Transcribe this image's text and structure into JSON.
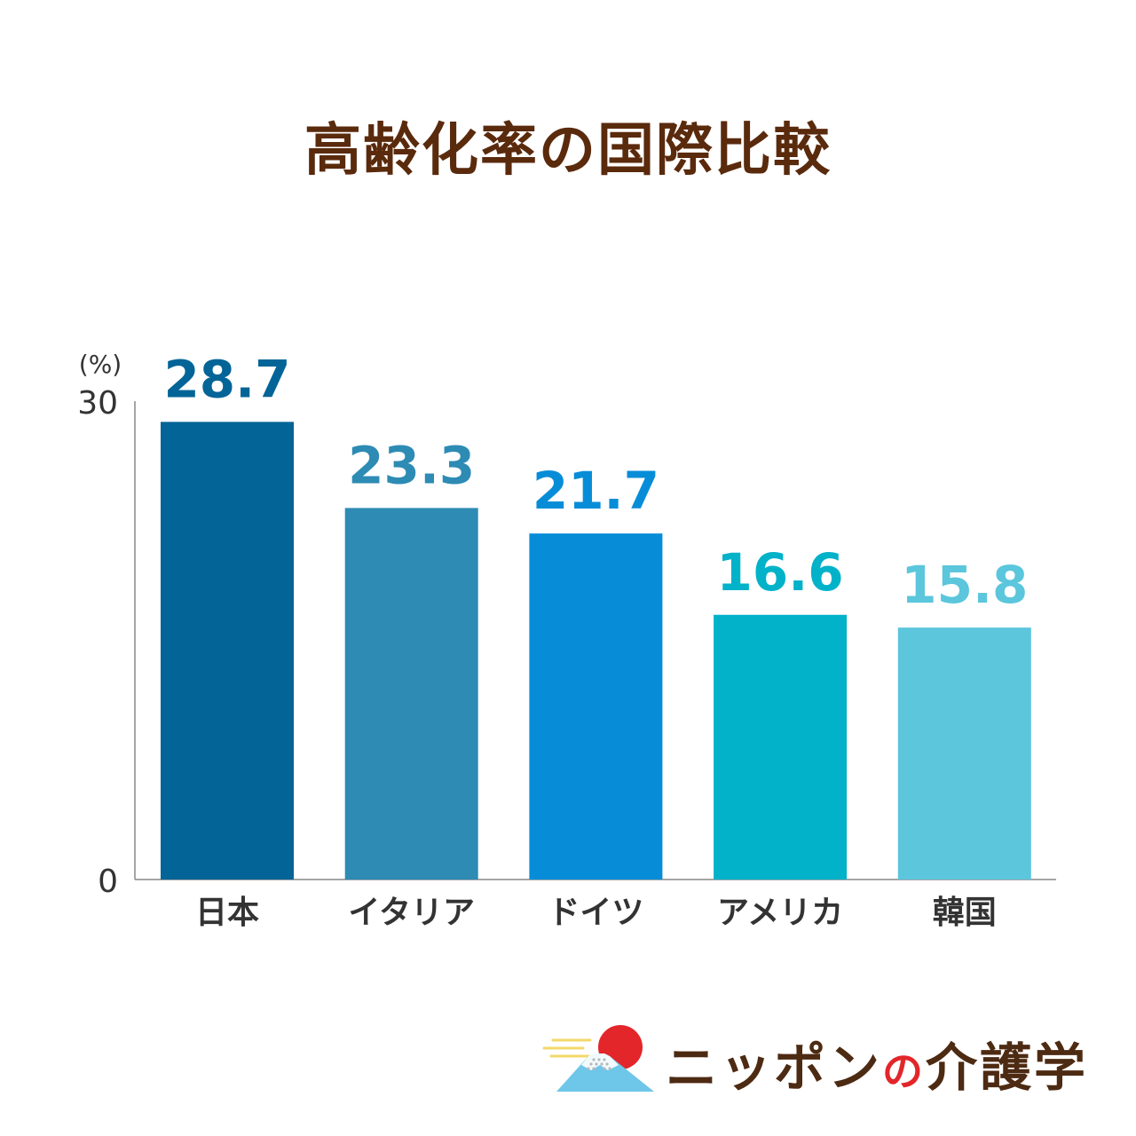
{
  "title": "高齢化率の国際比較",
  "chart_data": {
    "type": "bar",
    "title": "高齢化率の国際比較",
    "unit_label": "(%)",
    "categories": [
      "日本",
      "イタリア",
      "ドイツ",
      "アメリカ",
      "韓国"
    ],
    "values": [
      28.7,
      23.3,
      21.7,
      16.6,
      15.8
    ],
    "value_labels": [
      "28.7",
      "23.3",
      "21.7",
      "16.6",
      "15.8"
    ],
    "colors": [
      "#036497",
      "#2d8bb4",
      "#078dd8",
      "#01b2c9",
      "#5bc6dc"
    ],
    "ylim": [
      0,
      30
    ],
    "yticks": [
      "0",
      "30"
    ],
    "grid": false,
    "legend": "none"
  },
  "logo": {
    "text_main": "ニッポン",
    "text_no": "の",
    "text_tail": "介護学",
    "icon": "mount-fuji-sun-icon",
    "sun_color": "#e2262a",
    "mountain_color": "#6ec6e8",
    "cloud_color": "#f3d86a"
  }
}
